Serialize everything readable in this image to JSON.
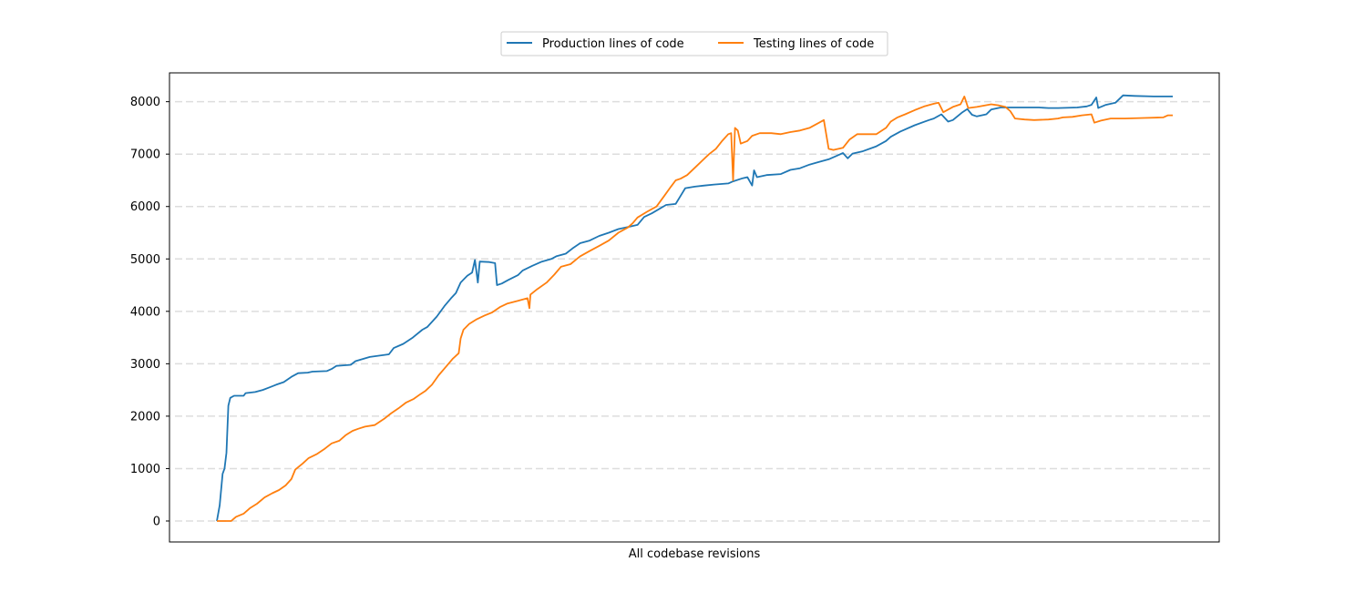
{
  "chart_data": {
    "type": "line",
    "title": "",
    "xlabel": "All codebase revisions",
    "ylabel": "",
    "ylim": [
      -400,
      8550
    ],
    "yticks": [
      0,
      1000,
      2000,
      3000,
      4000,
      5000,
      6000,
      7000,
      8000
    ],
    "grid": "horizontal dashed",
    "legend": "top-center",
    "x_range": [
      0,
      1000
    ],
    "series": [
      {
        "name": "Production lines of code",
        "color": "#1f77b4",
        "points": [
          [
            0,
            0
          ],
          [
            3,
            300
          ],
          [
            6,
            900
          ],
          [
            8,
            1000
          ],
          [
            10,
            1300
          ],
          [
            12,
            2200
          ],
          [
            14,
            2350
          ],
          [
            18,
            2390
          ],
          [
            28,
            2390
          ],
          [
            30,
            2440
          ],
          [
            40,
            2460
          ],
          [
            48,
            2500
          ],
          [
            55,
            2550
          ],
          [
            62,
            2600
          ],
          [
            70,
            2650
          ],
          [
            78,
            2750
          ],
          [
            85,
            2820
          ],
          [
            95,
            2830
          ],
          [
            100,
            2850
          ],
          [
            115,
            2860
          ],
          [
            120,
            2900
          ],
          [
            125,
            2960
          ],
          [
            140,
            2980
          ],
          [
            145,
            3050
          ],
          [
            160,
            3130
          ],
          [
            180,
            3180
          ],
          [
            185,
            3300
          ],
          [
            195,
            3380
          ],
          [
            205,
            3500
          ],
          [
            215,
            3650
          ],
          [
            220,
            3700
          ],
          [
            230,
            3900
          ],
          [
            238,
            4100
          ],
          [
            245,
            4250
          ],
          [
            250,
            4350
          ],
          [
            255,
            4550
          ],
          [
            262,
            4680
          ],
          [
            267,
            4740
          ],
          [
            270,
            4980
          ],
          [
            273,
            4550
          ],
          [
            275,
            4950
          ],
          [
            285,
            4940
          ],
          [
            291,
            4920
          ],
          [
            293,
            4500
          ],
          [
            298,
            4530
          ],
          [
            305,
            4600
          ],
          [
            315,
            4690
          ],
          [
            320,
            4780
          ],
          [
            330,
            4870
          ],
          [
            340,
            4950
          ],
          [
            350,
            5000
          ],
          [
            355,
            5050
          ],
          [
            365,
            5100
          ],
          [
            372,
            5200
          ],
          [
            380,
            5300
          ],
          [
            390,
            5350
          ],
          [
            400,
            5440
          ],
          [
            410,
            5500
          ],
          [
            420,
            5570
          ],
          [
            430,
            5610
          ],
          [
            440,
            5650
          ],
          [
            447,
            5800
          ],
          [
            455,
            5870
          ],
          [
            470,
            6030
          ],
          [
            480,
            6050
          ],
          [
            485,
            6200
          ],
          [
            490,
            6350
          ],
          [
            500,
            6380
          ],
          [
            510,
            6400
          ],
          [
            520,
            6420
          ],
          [
            535,
            6440
          ],
          [
            540,
            6480
          ],
          [
            550,
            6540
          ],
          [
            555,
            6560
          ],
          [
            560,
            6400
          ],
          [
            562,
            6690
          ],
          [
            565,
            6560
          ],
          [
            575,
            6600
          ],
          [
            590,
            6620
          ],
          [
            600,
            6700
          ],
          [
            610,
            6730
          ],
          [
            620,
            6800
          ],
          [
            630,
            6850
          ],
          [
            640,
            6900
          ],
          [
            650,
            6980
          ],
          [
            655,
            7020
          ],
          [
            660,
            6920
          ],
          [
            665,
            7010
          ],
          [
            675,
            7050
          ],
          [
            690,
            7150
          ],
          [
            700,
            7250
          ],
          [
            705,
            7330
          ],
          [
            715,
            7430
          ],
          [
            730,
            7550
          ],
          [
            745,
            7650
          ],
          [
            750,
            7680
          ],
          [
            758,
            7760
          ],
          [
            765,
            7620
          ],
          [
            770,
            7650
          ],
          [
            780,
            7800
          ],
          [
            785,
            7860
          ],
          [
            790,
            7750
          ],
          [
            795,
            7720
          ],
          [
            805,
            7760
          ],
          [
            810,
            7850
          ],
          [
            820,
            7890
          ],
          [
            840,
            7890
          ],
          [
            860,
            7890
          ],
          [
            870,
            7880
          ],
          [
            880,
            7880
          ],
          [
            900,
            7890
          ],
          [
            910,
            7910
          ],
          [
            915,
            7940
          ],
          [
            920,
            8080
          ],
          [
            922,
            7880
          ],
          [
            930,
            7940
          ],
          [
            940,
            7980
          ],
          [
            948,
            8120
          ],
          [
            960,
            8110
          ],
          [
            980,
            8100
          ],
          [
            1000,
            8100
          ]
        ]
      },
      {
        "name": "Testing lines of code",
        "color": "#ff7f0e",
        "points": [
          [
            0,
            0
          ],
          [
            15,
            0
          ],
          [
            20,
            80
          ],
          [
            28,
            140
          ],
          [
            35,
            250
          ],
          [
            42,
            330
          ],
          [
            50,
            450
          ],
          [
            58,
            530
          ],
          [
            65,
            590
          ],
          [
            72,
            680
          ],
          [
            78,
            800
          ],
          [
            82,
            980
          ],
          [
            90,
            1100
          ],
          [
            96,
            1200
          ],
          [
            105,
            1280
          ],
          [
            113,
            1380
          ],
          [
            120,
            1480
          ],
          [
            128,
            1530
          ],
          [
            135,
            1640
          ],
          [
            142,
            1720
          ],
          [
            148,
            1760
          ],
          [
            155,
            1800
          ],
          [
            165,
            1830
          ],
          [
            175,
            1950
          ],
          [
            182,
            2050
          ],
          [
            190,
            2150
          ],
          [
            198,
            2260
          ],
          [
            206,
            2330
          ],
          [
            213,
            2420
          ],
          [
            218,
            2480
          ],
          [
            225,
            2600
          ],
          [
            232,
            2780
          ],
          [
            240,
            2950
          ],
          [
            247,
            3100
          ],
          [
            253,
            3200
          ],
          [
            255,
            3480
          ],
          [
            258,
            3650
          ],
          [
            264,
            3760
          ],
          [
            272,
            3850
          ],
          [
            280,
            3920
          ],
          [
            288,
            3980
          ],
          [
            296,
            4080
          ],
          [
            304,
            4150
          ],
          [
            315,
            4200
          ],
          [
            325,
            4250
          ],
          [
            327,
            4060
          ],
          [
            328,
            4320
          ],
          [
            335,
            4420
          ],
          [
            345,
            4550
          ],
          [
            353,
            4700
          ],
          [
            360,
            4850
          ],
          [
            370,
            4900
          ],
          [
            380,
            5050
          ],
          [
            390,
            5150
          ],
          [
            400,
            5250
          ],
          [
            410,
            5350
          ],
          [
            420,
            5500
          ],
          [
            430,
            5600
          ],
          [
            435,
            5680
          ],
          [
            440,
            5790
          ],
          [
            450,
            5900
          ],
          [
            460,
            6000
          ],
          [
            468,
            6200
          ],
          [
            475,
            6380
          ],
          [
            480,
            6500
          ],
          [
            485,
            6530
          ],
          [
            492,
            6600
          ],
          [
            500,
            6740
          ],
          [
            508,
            6880
          ],
          [
            515,
            7000
          ],
          [
            522,
            7100
          ],
          [
            528,
            7240
          ],
          [
            535,
            7380
          ],
          [
            538,
            7400
          ],
          [
            540,
            6500
          ],
          [
            542,
            7500
          ],
          [
            545,
            7450
          ],
          [
            548,
            7200
          ],
          [
            555,
            7250
          ],
          [
            560,
            7350
          ],
          [
            568,
            7400
          ],
          [
            580,
            7400
          ],
          [
            590,
            7380
          ],
          [
            600,
            7420
          ],
          [
            610,
            7450
          ],
          [
            620,
            7500
          ],
          [
            630,
            7600
          ],
          [
            635,
            7650
          ],
          [
            640,
            7100
          ],
          [
            645,
            7080
          ],
          [
            655,
            7120
          ],
          [
            662,
            7280
          ],
          [
            670,
            7380
          ],
          [
            690,
            7380
          ],
          [
            700,
            7500
          ],
          [
            705,
            7620
          ],
          [
            712,
            7700
          ],
          [
            720,
            7760
          ],
          [
            730,
            7840
          ],
          [
            740,
            7910
          ],
          [
            750,
            7960
          ],
          [
            755,
            7980
          ],
          [
            760,
            7800
          ],
          [
            770,
            7900
          ],
          [
            778,
            7950
          ],
          [
            782,
            8100
          ],
          [
            786,
            7880
          ],
          [
            795,
            7900
          ],
          [
            810,
            7950
          ],
          [
            818,
            7930
          ],
          [
            825,
            7900
          ],
          [
            830,
            7820
          ],
          [
            835,
            7680
          ],
          [
            845,
            7660
          ],
          [
            855,
            7650
          ],
          [
            870,
            7660
          ],
          [
            880,
            7680
          ],
          [
            885,
            7700
          ],
          [
            895,
            7710
          ],
          [
            905,
            7740
          ],
          [
            915,
            7760
          ],
          [
            918,
            7600
          ],
          [
            925,
            7640
          ],
          [
            935,
            7680
          ],
          [
            950,
            7680
          ],
          [
            970,
            7690
          ],
          [
            990,
            7700
          ],
          [
            995,
            7740
          ],
          [
            1000,
            7740
          ]
        ]
      }
    ]
  }
}
